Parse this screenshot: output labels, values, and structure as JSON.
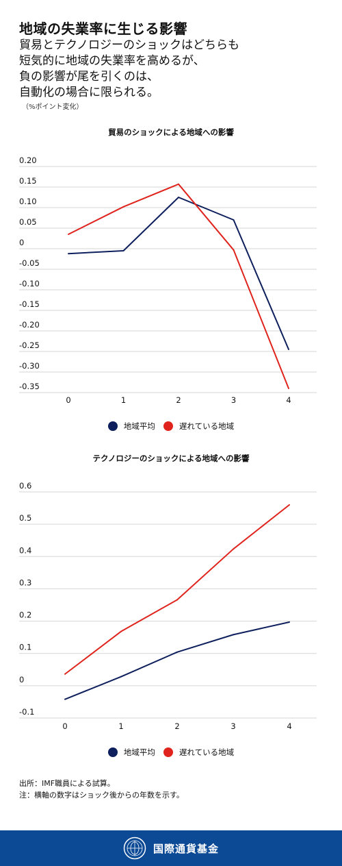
{
  "header": {
    "title": "地域の失業率に生じる影響",
    "subtitle_lines": [
      "貿易とテクノロジーのショックはどちらも",
      "短気的に地域の失業率を高めるが、",
      "負の影響が尾を引くのは、",
      "自動化の場合に限られる。"
    ],
    "unit": "（%ポイント変化）"
  },
  "legend": {
    "average": "地域平均",
    "lagging": "遅れている地域"
  },
  "colors": {
    "average": "#0d1f5c",
    "lagging": "#e0231c",
    "footer": "#0c4a96"
  },
  "chart_data": [
    {
      "type": "line",
      "title": "貿易のショックによる地域への影響",
      "x": [
        0,
        1,
        2,
        3,
        4
      ],
      "x_tick_labels": [
        "0",
        "1",
        "2",
        "3",
        "4"
      ],
      "y_ticks": [
        0.2,
        0.15,
        0.1,
        0.05,
        0,
        -0.05,
        -0.1,
        -0.15,
        -0.2,
        -0.25,
        -0.3,
        -0.35
      ],
      "y_tick_labels": [
        "0.20",
        "0.15",
        "0.10",
        "0.05",
        "0",
        "-0.05",
        "-0.10",
        "-0.15",
        "-0.20",
        "-0.25",
        "-0.30",
        "-0.35"
      ],
      "ylim": [
        -0.35,
        0.2
      ],
      "grid": true,
      "legend_position": "bottom-center",
      "series": [
        {
          "name": "地域平均",
          "color": "#0d1f5c",
          "values": [
            -0.012,
            -0.005,
            0.125,
            0.07,
            -0.245
          ]
        },
        {
          "name": "遅れている地域",
          "color": "#e0231c",
          "values": [
            0.035,
            0.102,
            0.157,
            -0.003,
            -0.34
          ]
        }
      ]
    },
    {
      "type": "line",
      "title": "テクノロジーのショックによる地域への影響",
      "x": [
        0,
        1,
        2,
        3,
        4
      ],
      "x_tick_labels": [
        "0",
        "1",
        "2",
        "3",
        "4"
      ],
      "y_ticks": [
        0.6,
        0.5,
        0.4,
        0.3,
        0.2,
        0.1,
        0,
        -0.1
      ],
      "y_tick_labels": [
        "0.6",
        "0.5",
        "0.4",
        "0.3",
        "0.2",
        "0.1",
        "0",
        "-0.1"
      ],
      "ylim": [
        -0.1,
        0.6
      ],
      "grid": true,
      "legend_position": "bottom-center",
      "series": [
        {
          "name": "地域平均",
          "color": "#0d1f5c",
          "values": [
            -0.042,
            0.028,
            0.104,
            0.158,
            0.197
          ]
        },
        {
          "name": "遅れている地域",
          "color": "#e0231c",
          "values": [
            0.036,
            0.168,
            0.266,
            0.423,
            0.56
          ]
        }
      ]
    }
  ],
  "source": {
    "line1": "出所：IMF職員による試算。",
    "line2": "注：横軸の数字はショック後からの年数を示す。"
  },
  "footer": {
    "logo_icon": "imf-seal-icon",
    "org_name": "国際通貨基金"
  }
}
